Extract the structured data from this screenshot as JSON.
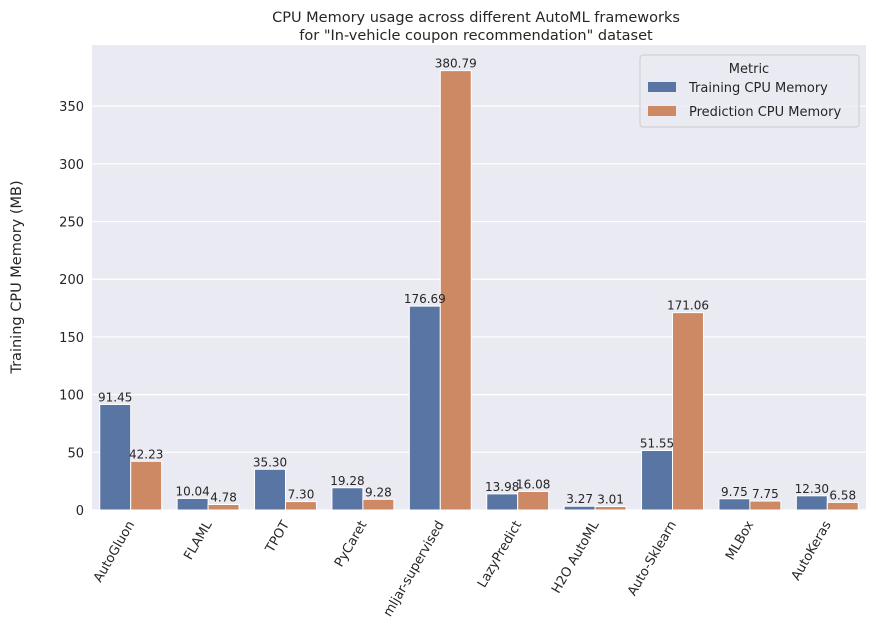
{
  "chart_data": {
    "type": "bar",
    "title": "CPU Memory usage across different AutoML frameworks\nfor \"In-vehicle coupon recommendation\" dataset",
    "title_lines": [
      "CPU Memory usage across different AutoML frameworks",
      "for \"In-vehicle coupon recommendation\" dataset"
    ],
    "xlabel": "",
    "ylabel": "Training CPU Memory (MB)",
    "ylim": [
      0,
      403
    ],
    "yticks": [
      0,
      50,
      100,
      150,
      200,
      250,
      300,
      350
    ],
    "grid": true,
    "legend": {
      "title": "Metric",
      "placement": "top-right"
    },
    "categories": [
      "AutoGluon",
      "FLAML",
      "TPOT",
      "PyCaret",
      "mljar-supervised",
      "LazyPredict",
      "H2O AutoML",
      "Auto-Sklearn",
      "MLBox",
      "AutoKeras"
    ],
    "series": [
      {
        "name": "Training CPU Memory",
        "color": "#5975a4",
        "values": [
          91.45,
          10.04,
          35.3,
          19.28,
          176.69,
          13.98,
          3.27,
          51.55,
          9.75,
          12.3
        ]
      },
      {
        "name": "Prediction CPU Memory",
        "color": "#cc8963",
        "values": [
          42.23,
          4.78,
          7.3,
          9.28,
          380.79,
          16.08,
          3.01,
          171.06,
          7.75,
          6.58
        ]
      }
    ],
    "background": "#eaeaf2"
  }
}
